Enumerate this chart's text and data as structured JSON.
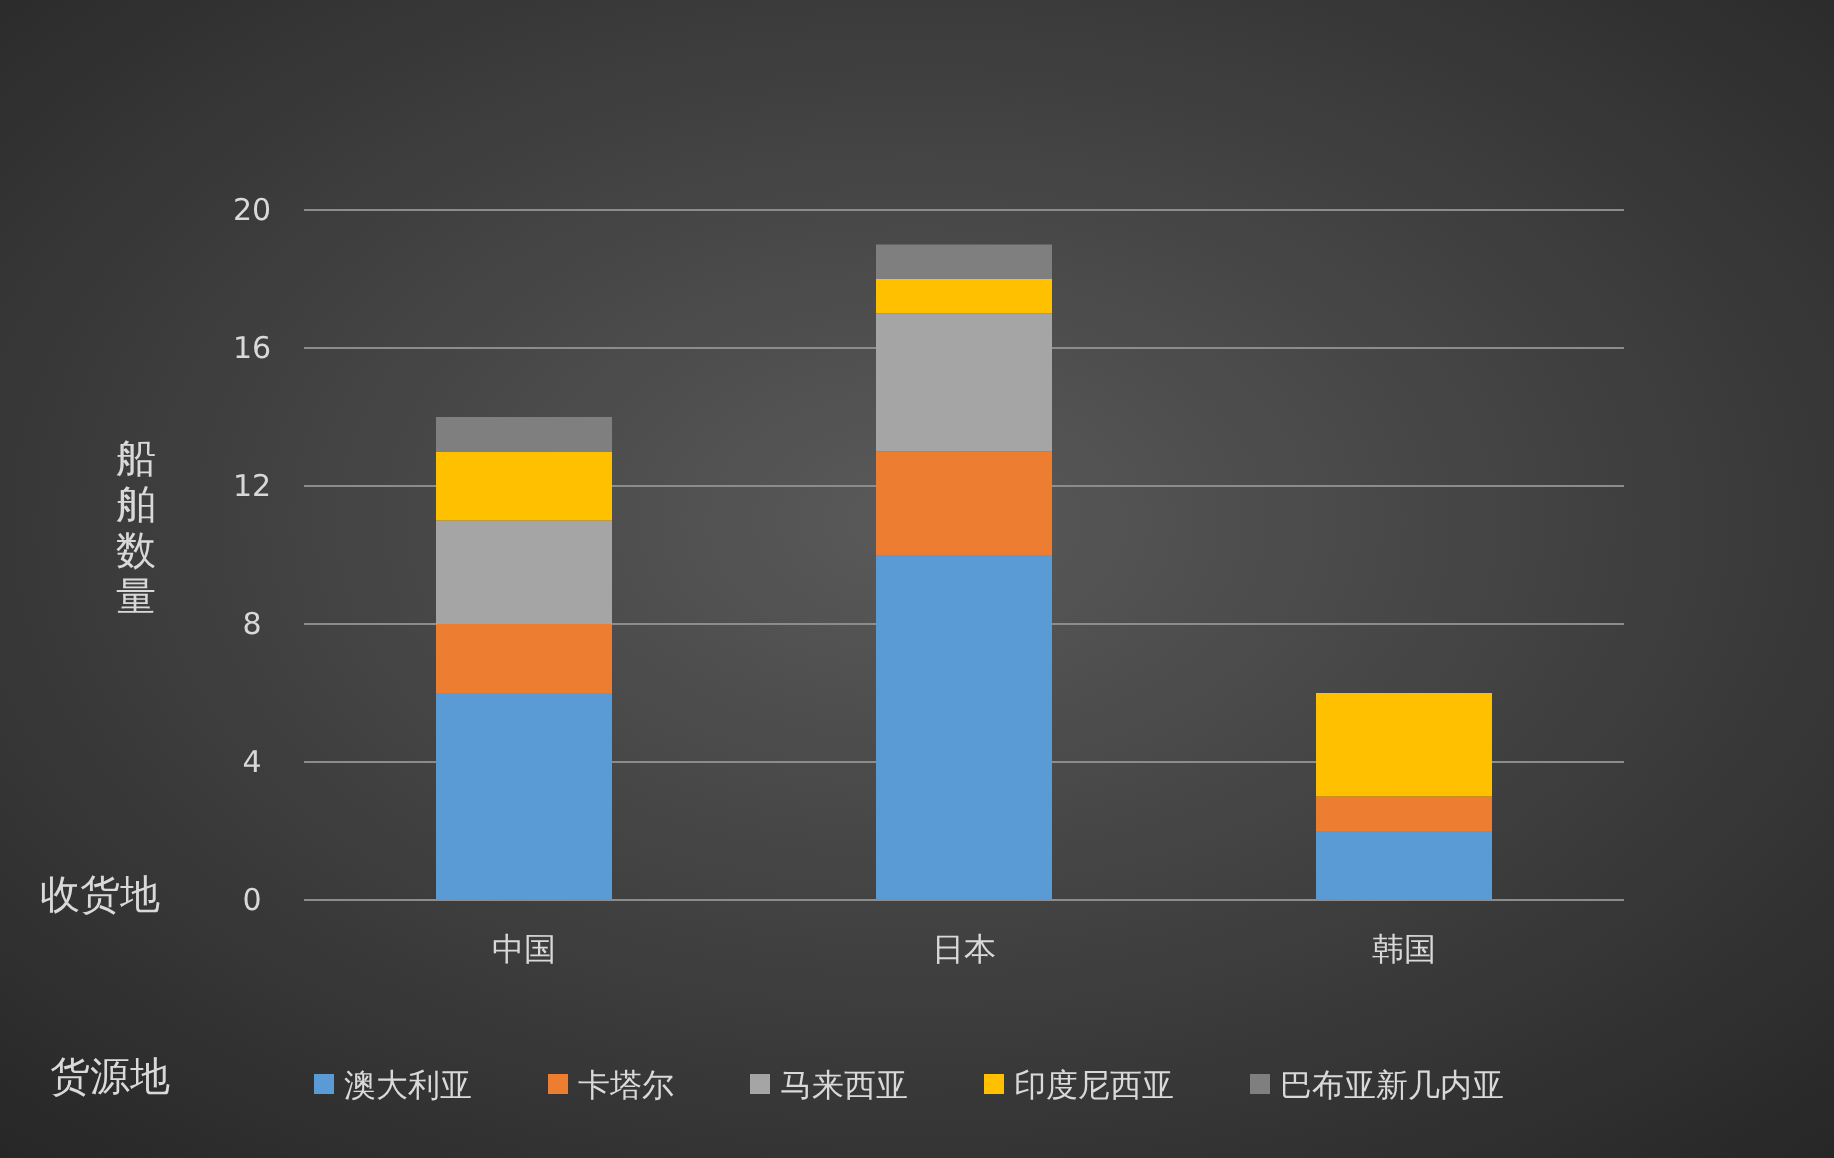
{
  "chart_data": {
    "type": "bar",
    "stacked": true,
    "xlabel": "收货地",
    "ylabel": "船舶数量",
    "legend_title": "货源地",
    "categories": [
      "中国",
      "日本",
      "韩国"
    ],
    "series": [
      {
        "name": "澳大利亚",
        "color": "#5b9bd5",
        "values": [
          6,
          10,
          2
        ]
      },
      {
        "name": "卡塔尔",
        "color": "#ed7d31",
        "values": [
          2,
          3,
          1
        ]
      },
      {
        "name": "马来西亚",
        "color": "#a5a5a5",
        "values": [
          3,
          4,
          0
        ]
      },
      {
        "name": "印度尼西亚",
        "color": "#ffc000",
        "values": [
          2,
          1,
          3
        ]
      },
      {
        "name": "巴布亚新几内亚",
        "color": "#7f7f7f",
        "values": [
          1,
          1,
          0
        ]
      }
    ],
    "ylim": [
      0,
      20
    ],
    "yticks": [
      0,
      4,
      8,
      12,
      16,
      20
    ],
    "grid": "y",
    "legend": "bottom"
  }
}
